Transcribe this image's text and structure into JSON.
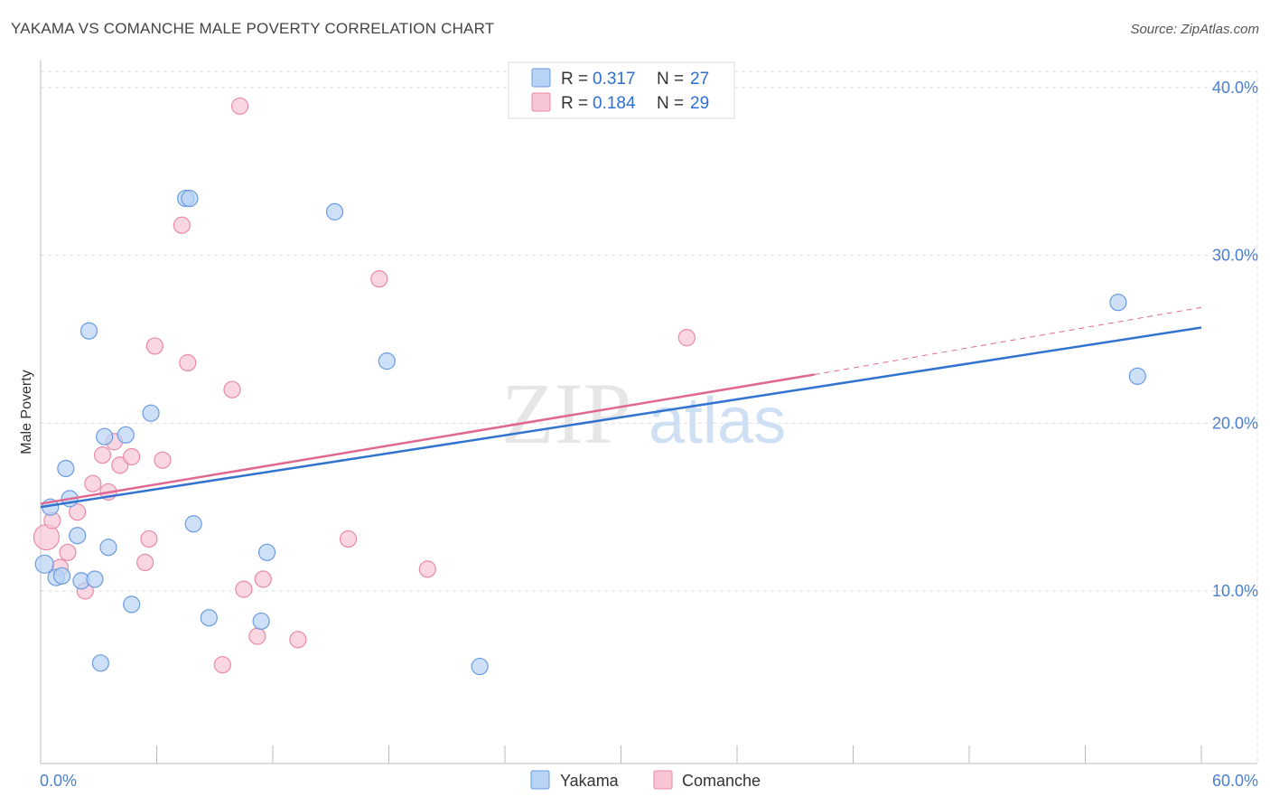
{
  "title": "YAKAMA VS COMANCHE MALE POVERTY CORRELATION CHART",
  "source": "Source: ZipAtlas.com",
  "colors": {
    "yakama_fill": "#b8d3f5",
    "yakama_stroke": "#6a9be0",
    "yakama_line": "#3373d0",
    "comanche_fill": "#f8c5d5",
    "comanche_stroke": "#e88aa8",
    "comanche_line": "#e06890",
    "grid": "#dddddd",
    "tick_text": "#4a7fd0"
  },
  "chart_data": {
    "type": "scatter",
    "title": "YAKAMA VS COMANCHE MALE POVERTY CORRELATION CHART",
    "xlabel": "",
    "ylabel": "Male Poverty",
    "xlim": [
      0,
      60
    ],
    "ylim": [
      0,
      41
    ],
    "x_tick_labels": [
      {
        "value": 0,
        "label": "0.0%"
      },
      {
        "value": 60,
        "label": "60.0%"
      }
    ],
    "y_tick_labels": [
      {
        "value": 10,
        "label": "10.0%"
      },
      {
        "value": 20,
        "label": "20.0%"
      },
      {
        "value": 30,
        "label": "30.0%"
      },
      {
        "value": 40,
        "label": "40.0%"
      }
    ],
    "watermark": {
      "zip": "ZIP",
      "atlas": "atlas"
    },
    "legend": [
      {
        "name": "Yakama",
        "r_label": "R =",
        "r": "0.317",
        "n_label": "N =",
        "n": "27"
      },
      {
        "name": "Comanche",
        "r_label": "R =",
        "r": "0.184",
        "n_label": "N =",
        "n": "29"
      }
    ],
    "series": [
      {
        "name": "Yakama",
        "points": [
          [
            0.2,
            11.6,
            10
          ],
          [
            0.5,
            15.0,
            9
          ],
          [
            0.8,
            10.8,
            9
          ],
          [
            1.1,
            10.9,
            9
          ],
          [
            1.3,
            17.3,
            9
          ],
          [
            1.5,
            15.5,
            9
          ],
          [
            1.9,
            13.3,
            9
          ],
          [
            2.1,
            10.6,
            9
          ],
          [
            2.5,
            25.5,
            9
          ],
          [
            2.8,
            10.7,
            9
          ],
          [
            3.1,
            5.7,
            9
          ],
          [
            3.3,
            19.2,
            9
          ],
          [
            3.5,
            12.6,
            9
          ],
          [
            4.4,
            19.3,
            9
          ],
          [
            4.7,
            9.2,
            9
          ],
          [
            5.7,
            20.6,
            9
          ],
          [
            7.5,
            33.4,
            9
          ],
          [
            7.7,
            33.4,
            9
          ],
          [
            7.9,
            14.0,
            9
          ],
          [
            8.7,
            8.4,
            9
          ],
          [
            11.4,
            8.2,
            9
          ],
          [
            11.7,
            12.3,
            9
          ],
          [
            15.2,
            32.6,
            9
          ],
          [
            17.9,
            23.7,
            9
          ],
          [
            22.7,
            5.5,
            9
          ],
          [
            55.7,
            27.2,
            9
          ],
          [
            56.7,
            22.8,
            9
          ]
        ],
        "trend": {
          "x0": 0,
          "y0": 15.0,
          "x1": 60,
          "y1": 25.7
        }
      },
      {
        "name": "Comanche",
        "points": [
          [
            0.3,
            13.2,
            14
          ],
          [
            0.6,
            14.2,
            9
          ],
          [
            1.0,
            11.4,
            9
          ],
          [
            1.4,
            12.3,
            9
          ],
          [
            1.9,
            14.7,
            9
          ],
          [
            2.3,
            10.0,
            9
          ],
          [
            2.7,
            16.4,
            9
          ],
          [
            3.2,
            18.1,
            9
          ],
          [
            3.5,
            15.9,
            9
          ],
          [
            3.8,
            18.9,
            9
          ],
          [
            4.1,
            17.5,
            9
          ],
          [
            4.7,
            18.0,
            9
          ],
          [
            5.4,
            11.7,
            9
          ],
          [
            5.6,
            13.1,
            9
          ],
          [
            5.9,
            24.6,
            9
          ],
          [
            6.3,
            17.8,
            9
          ],
          [
            7.3,
            31.8,
            9
          ],
          [
            7.6,
            23.6,
            9
          ],
          [
            9.4,
            5.6,
            9
          ],
          [
            9.9,
            22.0,
            9
          ],
          [
            10.3,
            38.9,
            9
          ],
          [
            10.5,
            10.1,
            9
          ],
          [
            11.2,
            7.3,
            9
          ],
          [
            11.5,
            10.7,
            9
          ],
          [
            13.3,
            7.1,
            9
          ],
          [
            15.9,
            13.1,
            9
          ],
          [
            17.5,
            28.6,
            9
          ],
          [
            20.0,
            11.3,
            9
          ],
          [
            33.4,
            25.1,
            9
          ]
        ],
        "trend": {
          "x0": 0,
          "y0": 15.2,
          "x1": 40,
          "y1": 22.9
        },
        "trend_dashed": {
          "x0": 40,
          "y0": 22.9,
          "x1": 60,
          "y1": 26.9
        }
      }
    ]
  }
}
